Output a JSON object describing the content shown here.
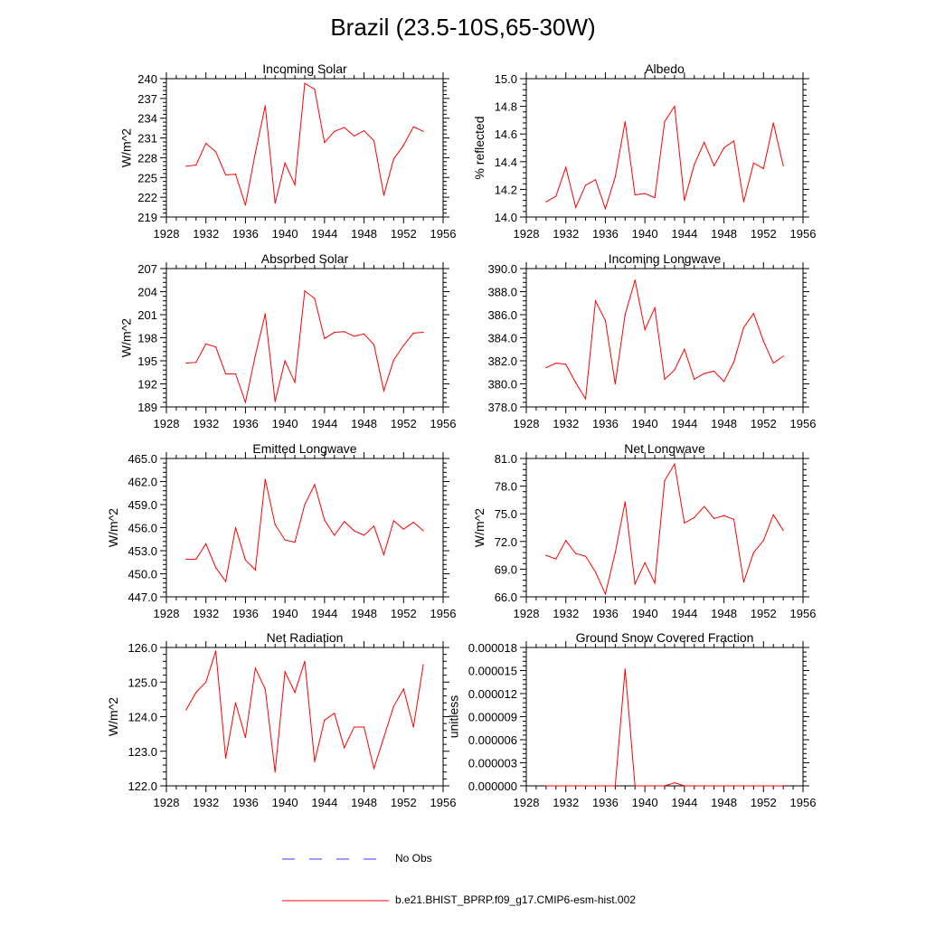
{
  "title": "Brazil (23.5-10S,65-30W)",
  "colors": {
    "series": "#ff0000",
    "obs": "#3a3aff",
    "axis": "#000000"
  },
  "legend": {
    "obs_label": "No Obs",
    "model_label": "b.e21.BHIST_BPRP.f09_g17.CMIP6-esm-hist.002"
  },
  "chart_data": [
    {
      "type": "line",
      "title": "Incoming Solar",
      "ylabel": "W/m^2",
      "xlabel": "",
      "xlim": [
        1928,
        1956
      ],
      "xticks": [
        1928,
        1932,
        1936,
        1940,
        1944,
        1948,
        1952,
        1956
      ],
      "xtick_labels": [
        "1928",
        "1932",
        "1936",
        "1940",
        "1944",
        "1948",
        "1952",
        "1956"
      ],
      "ylim": [
        219,
        240
      ],
      "yticks": [
        219,
        222,
        225,
        228,
        231,
        234,
        237,
        240
      ],
      "ytick_labels": [
        "219",
        "222",
        "225",
        "228",
        "231",
        "234",
        "237",
        "240"
      ],
      "x": [
        1930,
        1931,
        1932,
        1933,
        1934,
        1935,
        1936,
        1937,
        1938,
        1939,
        1940,
        1941,
        1942,
        1943,
        1944,
        1945,
        1946,
        1947,
        1948,
        1949,
        1950,
        1951,
        1952,
        1953,
        1954
      ],
      "series": [
        {
          "name": "b.e21.BHIST_BPRP.f09_g17.CMIP6-esm-hist.002",
          "values": [
            226.7,
            226.9,
            230.2,
            228.9,
            225.4,
            225.5,
            220.8,
            228.7,
            235.9,
            221.1,
            227.2,
            223.9,
            239.3,
            238.4,
            230.3,
            232.0,
            232.6,
            231.3,
            232.1,
            230.6,
            222.3,
            227.8,
            229.9,
            232.7,
            232.0
          ]
        }
      ]
    },
    {
      "type": "line",
      "title": "Albedo",
      "ylabel": "% reflected",
      "xlabel": "",
      "xlim": [
        1928,
        1956
      ],
      "xticks": [
        1928,
        1932,
        1936,
        1940,
        1944,
        1948,
        1952,
        1956
      ],
      "xtick_labels": [
        "1928",
        "1932",
        "1936",
        "1940",
        "1944",
        "1948",
        "1952",
        "1956"
      ],
      "ylim": [
        14.0,
        15.0
      ],
      "yticks": [
        14.0,
        14.2,
        14.4,
        14.6,
        14.8,
        15.0
      ],
      "ytick_labels": [
        "14.0",
        "14.2",
        "14.4",
        "14.6",
        "14.8",
        "15.0"
      ],
      "x": [
        1930,
        1931,
        1932,
        1933,
        1934,
        1935,
        1936,
        1937,
        1938,
        1939,
        1940,
        1941,
        1942,
        1943,
        1944,
        1945,
        1946,
        1947,
        1948,
        1949,
        1950,
        1951,
        1952,
        1953,
        1954
      ],
      "series": [
        {
          "name": "b.e21.BHIST_BPRP.f09_g17.CMIP6-esm-hist.002",
          "values": [
            14.11,
            14.15,
            14.36,
            14.07,
            14.23,
            14.27,
            14.06,
            14.29,
            14.69,
            14.16,
            14.17,
            14.14,
            14.69,
            14.8,
            14.12,
            14.38,
            14.54,
            14.37,
            14.5,
            14.55,
            14.11,
            14.39,
            14.35,
            14.68,
            14.37
          ]
        }
      ]
    },
    {
      "type": "line",
      "title": "Absorbed Solar",
      "ylabel": "W/m^2",
      "xlabel": "",
      "xlim": [
        1928,
        1956
      ],
      "xticks": [
        1928,
        1932,
        1936,
        1940,
        1944,
        1948,
        1952,
        1956
      ],
      "xtick_labels": [
        "1928",
        "1932",
        "1936",
        "1940",
        "1944",
        "1948",
        "1952",
        "1956"
      ],
      "ylim": [
        189,
        207
      ],
      "yticks": [
        189,
        192,
        195,
        198,
        201,
        204,
        207
      ],
      "ytick_labels": [
        "189",
        "192",
        "195",
        "198",
        "201",
        "204",
        "207"
      ],
      "x": [
        1930,
        1931,
        1932,
        1933,
        1934,
        1935,
        1936,
        1937,
        1938,
        1939,
        1940,
        1941,
        1942,
        1943,
        1944,
        1945,
        1946,
        1947,
        1948,
        1949,
        1950,
        1951,
        1952,
        1953,
        1954
      ],
      "series": [
        {
          "name": "b.e21.BHIST_BPRP.f09_g17.CMIP6-esm-hist.002",
          "values": [
            194.7,
            194.8,
            197.2,
            196.8,
            193.3,
            193.3,
            189.6,
            195.7,
            201.1,
            189.7,
            195.0,
            192.2,
            204.1,
            203.1,
            197.9,
            198.7,
            198.8,
            198.2,
            198.5,
            197.1,
            191.1,
            195.1,
            197.0,
            198.6,
            198.7
          ]
        }
      ]
    },
    {
      "type": "line",
      "title": "Incoming Longwave",
      "ylabel": "",
      "xlabel": "",
      "xlim": [
        1928,
        1956
      ],
      "xticks": [
        1928,
        1932,
        1936,
        1940,
        1944,
        1948,
        1952,
        1956
      ],
      "xtick_labels": [
        "1928",
        "1932",
        "1936",
        "1940",
        "1944",
        "1948",
        "1952",
        "1956"
      ],
      "ylim": [
        378.0,
        390.0
      ],
      "yticks": [
        378.0,
        380.0,
        382.0,
        384.0,
        386.0,
        388.0,
        390.0
      ],
      "ytick_labels": [
        "378.0",
        "380.0",
        "382.0",
        "384.0",
        "386.0",
        "388.0",
        "390.0"
      ],
      "x": [
        1930,
        1931,
        1932,
        1933,
        1934,
        1935,
        1936,
        1937,
        1938,
        1939,
        1940,
        1941,
        1942,
        1943,
        1944,
        1945,
        1946,
        1947,
        1948,
        1949,
        1950,
        1951,
        1952,
        1953,
        1954
      ],
      "series": [
        {
          "name": "b.e21.BHIST_BPRP.f09_g17.CMIP6-esm-hist.002",
          "values": [
            381.4,
            381.8,
            381.7,
            380.1,
            378.7,
            387.2,
            385.5,
            380.0,
            386.0,
            389.0,
            384.7,
            386.6,
            380.4,
            381.2,
            383.0,
            380.4,
            380.9,
            381.1,
            380.2,
            381.9,
            384.9,
            386.1,
            383.7,
            381.8,
            382.4
          ]
        }
      ]
    },
    {
      "type": "line",
      "title": "Emitted Longwave",
      "ylabel": "W/m^2",
      "xlabel": "",
      "xlim": [
        1928,
        1956
      ],
      "xticks": [
        1928,
        1932,
        1936,
        1940,
        1944,
        1948,
        1952,
        1956
      ],
      "xtick_labels": [
        "1928",
        "1932",
        "1936",
        "1940",
        "1944",
        "1948",
        "1952",
        "1956"
      ],
      "ylim": [
        447.0,
        465.0
      ],
      "yticks": [
        447.0,
        450.0,
        453.0,
        456.0,
        459.0,
        462.0,
        465.0
      ],
      "ytick_labels": [
        "447.0",
        "450.0",
        "453.0",
        "456.0",
        "459.0",
        "462.0",
        "465.0"
      ],
      "x": [
        1930,
        1931,
        1932,
        1933,
        1934,
        1935,
        1936,
        1937,
        1938,
        1939,
        1940,
        1941,
        1942,
        1943,
        1944,
        1945,
        1946,
        1947,
        1948,
        1949,
        1950,
        1951,
        1952,
        1953,
        1954
      ],
      "series": [
        {
          "name": "b.e21.BHIST_BPRP.f09_g17.CMIP6-esm-hist.002",
          "values": [
            451.9,
            451.9,
            453.9,
            450.8,
            449.0,
            456.0,
            451.8,
            450.5,
            462.3,
            456.4,
            454.4,
            454.1,
            459.0,
            461.6,
            457.0,
            455.0,
            456.8,
            455.6,
            455.0,
            456.2,
            452.5,
            456.9,
            455.8,
            456.7,
            455.6
          ]
        }
      ]
    },
    {
      "type": "line",
      "title": "Net Longwave",
      "ylabel": "W/m^2",
      "xlabel": "",
      "xlim": [
        1928,
        1956
      ],
      "xticks": [
        1928,
        1932,
        1936,
        1940,
        1944,
        1948,
        1952,
        1956
      ],
      "xtick_labels": [
        "1928",
        "1932",
        "1936",
        "1940",
        "1944",
        "1948",
        "1952",
        "1956"
      ],
      "ylim": [
        66.0,
        81.0
      ],
      "yticks": [
        66.0,
        69.0,
        72.0,
        75.0,
        78.0,
        81.0
      ],
      "ytick_labels": [
        "66.0",
        "69.0",
        "72.0",
        "75.0",
        "78.0",
        "81.0"
      ],
      "x": [
        1930,
        1931,
        1932,
        1933,
        1934,
        1935,
        1936,
        1937,
        1938,
        1939,
        1940,
        1941,
        1942,
        1943,
        1944,
        1945,
        1946,
        1947,
        1948,
        1949,
        1950,
        1951,
        1952,
        1953,
        1954
      ],
      "series": [
        {
          "name": "b.e21.BHIST_BPRP.f09_g17.CMIP6-esm-hist.002",
          "values": [
            70.5,
            70.1,
            72.1,
            70.7,
            70.4,
            68.7,
            66.3,
            70.8,
            76.3,
            67.4,
            69.7,
            67.5,
            78.6,
            80.4,
            74.0,
            74.6,
            75.8,
            74.5,
            74.8,
            74.4,
            67.6,
            70.8,
            72.1,
            74.9,
            73.2
          ]
        }
      ]
    },
    {
      "type": "line",
      "title": "Net Radiation",
      "ylabel": "W/m^2",
      "xlabel": "",
      "xlim": [
        1928,
        1956
      ],
      "xticks": [
        1928,
        1932,
        1936,
        1940,
        1944,
        1948,
        1952,
        1956
      ],
      "xtick_labels": [
        "1928",
        "1932",
        "1936",
        "1940",
        "1944",
        "1948",
        "1952",
        "1956"
      ],
      "ylim": [
        122.0,
        126.0
      ],
      "yticks": [
        122.0,
        123.0,
        124.0,
        125.0,
        126.0
      ],
      "ytick_labels": [
        "122.0",
        "123.0",
        "124.0",
        "125.0",
        "126.0"
      ],
      "x": [
        1930,
        1931,
        1932,
        1933,
        1934,
        1935,
        1936,
        1937,
        1938,
        1939,
        1940,
        1941,
        1942,
        1943,
        1944,
        1945,
        1946,
        1947,
        1948,
        1949,
        1950,
        1951,
        1952,
        1953,
        1954
      ],
      "series": [
        {
          "name": "b.e21.BHIST_BPRP.f09_g17.CMIP6-esm-hist.002",
          "values": [
            124.2,
            124.7,
            125.0,
            125.9,
            122.8,
            124.4,
            123.4,
            125.4,
            124.8,
            122.4,
            125.3,
            124.7,
            125.6,
            122.7,
            123.9,
            124.1,
            123.1,
            123.7,
            123.7,
            122.5,
            123.4,
            124.3,
            124.8,
            123.7,
            125.5
          ]
        }
      ]
    },
    {
      "type": "line",
      "title": "Ground Snow Covered Fraction",
      "ylabel": "unitless",
      "xlabel": "",
      "xlim": [
        1928,
        1956
      ],
      "xticks": [
        1928,
        1932,
        1936,
        1940,
        1944,
        1948,
        1952,
        1956
      ],
      "xtick_labels": [
        "1928",
        "1932",
        "1936",
        "1940",
        "1944",
        "1948",
        "1952",
        "1956"
      ],
      "ylim": [
        0.0,
        1.8e-05
      ],
      "yticks": [
        0.0,
        3e-06,
        6e-06,
        9e-06,
        1.2e-05,
        1.5e-05,
        1.8e-05
      ],
      "ytick_labels": [
        "0.000000",
        "0.000003",
        "0.000006",
        "0.000009",
        "0.000012",
        "0.000015",
        "0.000018"
      ],
      "x": [
        1930,
        1931,
        1932,
        1933,
        1934,
        1935,
        1936,
        1937,
        1938,
        1939,
        1940,
        1941,
        1942,
        1943,
        1944,
        1945,
        1946,
        1947,
        1948,
        1949,
        1950,
        1951,
        1952,
        1953,
        1954
      ],
      "series": [
        {
          "name": "b.e21.BHIST_BPRP.f09_g17.CMIP6-esm-hist.002",
          "values": [
            0,
            0,
            0,
            0,
            0,
            0,
            0,
            0,
            1.52e-05,
            0,
            0,
            0,
            0,
            4e-07,
            0,
            0,
            0,
            0,
            0,
            0,
            0,
            0,
            0,
            0,
            0
          ]
        }
      ]
    }
  ]
}
